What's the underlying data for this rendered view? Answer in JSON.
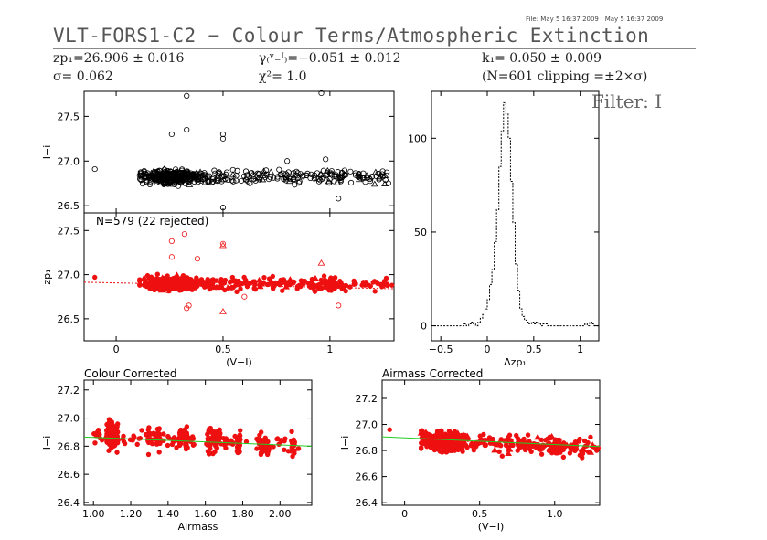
{
  "header": {
    "title": "VLT-FORS1-C2 − Colour Terms/Atmospheric Extinction",
    "file_line": "File: May  5 16:37 2009 : May  5 16:37 2009",
    "zp_text": "zp₁=26.906 ± 0.016",
    "sigma_text": "σ= 0.062",
    "gamma_text": "γ₍ᵛ₋ᴵ₎=−0.051 ± 0.012",
    "chi_text": "χ²=  1.0",
    "k_text": "k₁= 0.050 ± 0.009",
    "clip_text": "(N=601 clipping =±2×σ)",
    "filter_text": "Filter: I"
  },
  "colors": {
    "red": "#ee1111",
    "green": "#22cc22",
    "grey": "#555555",
    "black": "#000000"
  },
  "chart_data": [
    {
      "id": "top",
      "type": "scatter",
      "ylabel": "I−i",
      "xlim": [
        -0.15,
        1.3
      ],
      "ylim": [
        26.42,
        27.78
      ],
      "yticks": [
        26.5,
        27.0,
        27.5
      ],
      "ytick_labels": [
        "26.5",
        "27.0",
        "27.5"
      ],
      "xticks": [
        0,
        0.5,
        1.0
      ],
      "xtick_labels": [
        "",
        "",
        ""
      ],
      "color": "black",
      "filled": false,
      "fit": null,
      "panel_label": "",
      "cloud": {
        "seed": 11,
        "x_center": 0.26,
        "y_center": 26.82,
        "y_spread": 0.07,
        "y_slope": 0.0
      },
      "notable_points": [
        [
          -0.1,
          26.91
        ],
        [
          0.26,
          27.3
        ],
        [
          0.33,
          27.35
        ],
        [
          0.5,
          27.25
        ],
        [
          0.5,
          27.3
        ],
        [
          0.96,
          27.76
        ],
        [
          0.33,
          27.73
        ],
        [
          0.5,
          26.48
        ],
        [
          0.8,
          27.0
        ],
        [
          0.98,
          27.02
        ],
        [
          1.04,
          26.58
        ]
      ]
    },
    {
      "id": "middle",
      "type": "scatter",
      "ylabel": "zp₁",
      "xlim": [
        -0.15,
        1.3
      ],
      "ylim": [
        26.25,
        27.7
      ],
      "yticks": [
        26.5,
        27.0,
        27.5
      ],
      "ytick_labels": [
        "26.5",
        "27.0",
        "27.5"
      ],
      "xticks": [
        0,
        0.5,
        1.0
      ],
      "xtick_labels": [
        "0",
        "0.5",
        "1"
      ],
      "xlabel": "(V−I)",
      "color": "red",
      "filled": true,
      "fit": [
        [
          -0.15,
          26.914
        ],
        [
          1.3,
          26.84
        ]
      ],
      "panel_label": "N=579 (22 rejected)",
      "cloud": {
        "seed": 23,
        "x_center": 0.26,
        "y_center": 26.9,
        "y_spread": 0.07,
        "y_slope": 0.0
      },
      "rejected_points": [
        [
          0.26,
          27.38
        ],
        [
          0.32,
          27.46
        ],
        [
          0.5,
          27.33
        ],
        [
          0.5,
          27.35
        ],
        [
          0.33,
          26.62
        ],
        [
          0.34,
          26.65
        ],
        [
          0.5,
          26.58
        ],
        [
          0.24,
          26.82
        ],
        [
          0.6,
          26.75
        ],
        [
          0.93,
          26.82
        ],
        [
          0.96,
          27.13
        ],
        [
          1.04,
          26.65
        ],
        [
          0.26,
          27.2
        ],
        [
          0.38,
          27.18
        ]
      ],
      "notable_points": [
        [
          -0.1,
          26.97
        ],
        [
          1.19,
          26.87
        ],
        [
          1.29,
          26.88
        ]
      ]
    },
    {
      "id": "hist",
      "type": "histogram",
      "xlabel": "Δzp₁",
      "xlim": [
        -0.6,
        1.2
      ],
      "ylim": [
        -8,
        125
      ],
      "xticks": [
        -0.5,
        0,
        0.5,
        1
      ],
      "xtick_labels": [
        "−0.5",
        "0",
        "0.5",
        "1"
      ],
      "yticks": [
        0,
        50,
        100
      ],
      "ytick_labels": [
        "0",
        "50",
        "100"
      ],
      "bin_start": -0.575,
      "bin_width": 0.025,
      "counts": [
        0,
        0,
        0,
        0,
        0,
        0,
        0,
        0,
        0,
        0,
        0,
        0,
        0,
        1,
        0,
        1,
        2,
        1,
        0,
        2,
        4,
        6,
        9,
        14,
        22,
        30,
        45,
        62,
        85,
        104,
        119,
        113,
        100,
        77,
        55,
        33,
        19,
        9,
        5,
        3,
        2,
        1,
        2,
        1,
        2,
        1,
        0,
        1,
        1,
        0,
        0,
        0,
        0,
        0,
        0,
        0,
        0,
        0,
        0,
        0,
        0,
        0,
        0,
        0,
        0,
        1,
        0,
        2,
        1,
        0,
        0,
        0
      ]
    },
    {
      "id": "airmass",
      "type": "scatter",
      "title": "Colour Corrected",
      "xlabel": "Airmass",
      "ylabel": "I−i",
      "xlim": [
        0.95,
        2.17
      ],
      "ylim": [
        26.38,
        27.27
      ],
      "xticks": [
        1.0,
        1.2,
        1.4,
        1.6,
        1.8,
        2.0
      ],
      "xtick_labels": [
        "1.00",
        "1.20",
        "1.40",
        "1.60",
        "1.80",
        "2.00"
      ],
      "yticks": [
        26.4,
        26.6,
        26.8,
        27.0,
        27.2
      ],
      "ytick_labels": [
        "26.4",
        "26.6",
        "26.8",
        "27.0",
        "27.2"
      ],
      "color": "red",
      "filled": true,
      "fit": [
        [
          0.95,
          26.865
        ],
        [
          2.17,
          26.8
        ]
      ],
      "panel_label": "",
      "columns": [
        1.08,
        1.09,
        1.1,
        1.12,
        1.3,
        1.35,
        1.47,
        1.5,
        1.62,
        1.65,
        1.67,
        1.78,
        1.9,
        1.93,
        2.07
      ],
      "spread": [
        [
          1.0,
          1.3,
          26.87
        ],
        [
          1.3,
          1.7,
          26.85
        ],
        [
          1.7,
          2.1,
          26.8
        ]
      ]
    },
    {
      "id": "colour",
      "type": "scatter",
      "title": "Airmass Corrected",
      "xlabel": "(V−I)",
      "ylabel": "I−i",
      "xlim": [
        -0.15,
        1.3
      ],
      "ylim": [
        26.38,
        27.34
      ],
      "xticks": [
        0,
        0.5,
        1.0
      ],
      "xtick_labels": [
        "0",
        "0.5",
        "1.0"
      ],
      "yticks": [
        26.4,
        26.6,
        26.8,
        27.0,
        27.2
      ],
      "ytick_labels": [
        "26.4",
        "26.6",
        "26.8",
        "27.0",
        "27.2"
      ],
      "color": "red",
      "filled": true,
      "fit": [
        [
          -0.15,
          26.905
        ],
        [
          1.3,
          26.83
        ]
      ],
      "panel_label": "",
      "cloud": {
        "seed": 41,
        "x_center": 0.26,
        "y_center": 26.87,
        "y_spread": 0.06,
        "y_slope": -0.05
      },
      "notable_points": [
        [
          -0.1,
          26.96
        ],
        [
          1.28,
          26.8
        ],
        [
          1.29,
          26.82
        ]
      ]
    }
  ]
}
